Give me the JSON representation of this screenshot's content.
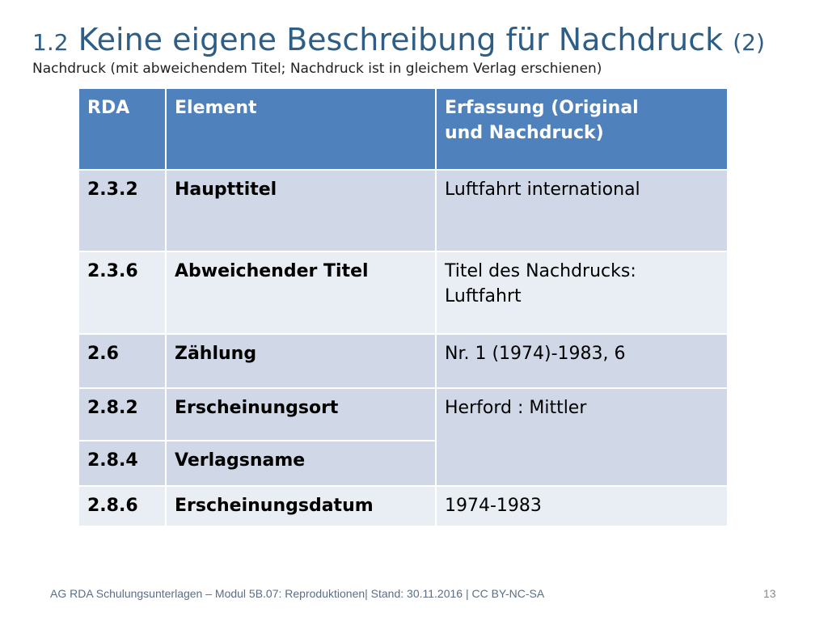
{
  "slide": {
    "title_number": "1.2",
    "title_main": "Keine eigene Beschreibung für Nachdruck",
    "title_suffix": "(2)",
    "subtitle": "Nachdruck (mit abweichendem Titel; Nachdruck ist in gleichem Verlag erschienen)"
  },
  "table": {
    "headers": {
      "rda": "RDA",
      "element": "Element",
      "erfassung_line1": "Erfassung (Original",
      "erfassung_line2": "und Nachdruck)"
    },
    "rows": [
      {
        "rda": "2.3.2",
        "element": "Haupttitel",
        "value_line1": "Luftfahrt international",
        "value_line2": ""
      },
      {
        "rda": "2.3.6",
        "element": "Abweichender Titel",
        "value_line1": "Titel des Nachdrucks:",
        "value_line2": "Luftfahrt"
      },
      {
        "rda": "2.6",
        "element": "Zählung",
        "value_line1": "Nr. 1 (1974)-1983, 6",
        "value_line2": ""
      },
      {
        "rda": "2.8.2",
        "element": "Erscheinungsort",
        "value_line1": "Herford : Mittler",
        "value_line2": ""
      },
      {
        "rda": "2.8.4",
        "element": "Verlagsname",
        "value_line1": "",
        "value_line2": ""
      },
      {
        "rda": "2.8.6",
        "element": "Erscheinungsdatum",
        "value_line1": "1974-1983",
        "value_line2": ""
      }
    ]
  },
  "footer": {
    "text": "AG RDA Schulungsunterlagen – Modul 5B.07: Reproduktionen| Stand: 30.11.2016 | CC BY-NC-SA",
    "page_number": "13"
  }
}
